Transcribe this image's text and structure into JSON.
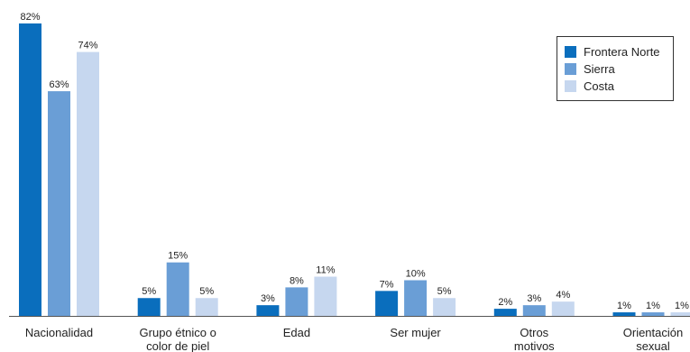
{
  "chart_data": {
    "type": "bar",
    "categories": [
      [
        "Nacionalidad"
      ],
      [
        "Grupo étnico o",
        "color de piel"
      ],
      [
        "Edad"
      ],
      [
        "Ser mujer"
      ],
      [
        "Otros",
        "motivos"
      ],
      [
        "Orientación",
        "sexual"
      ]
    ],
    "series": [
      {
        "name": "Frontera Norte",
        "color": "#0a6ebd",
        "values": [
          82,
          5,
          3,
          7,
          2,
          1
        ],
        "labels": [
          "82%",
          "5%",
          "3%",
          "7%",
          "2%",
          "1%"
        ]
      },
      {
        "name": "Sierra",
        "color": "#6a9ed6",
        "values": [
          63,
          15,
          8,
          10,
          3,
          1
        ],
        "labels": [
          "63%",
          "15%",
          "8%",
          "10%",
          "3%",
          "1%"
        ]
      },
      {
        "name": "Costa",
        "color": "#c6d7ef",
        "values": [
          74,
          5,
          11,
          5,
          4,
          1
        ],
        "labels": [
          "74%",
          "5%",
          "11%",
          "5%",
          "4%",
          "1%"
        ]
      }
    ],
    "ylim": [
      0,
      82
    ],
    "grid": false,
    "legend_position": "top-right"
  }
}
